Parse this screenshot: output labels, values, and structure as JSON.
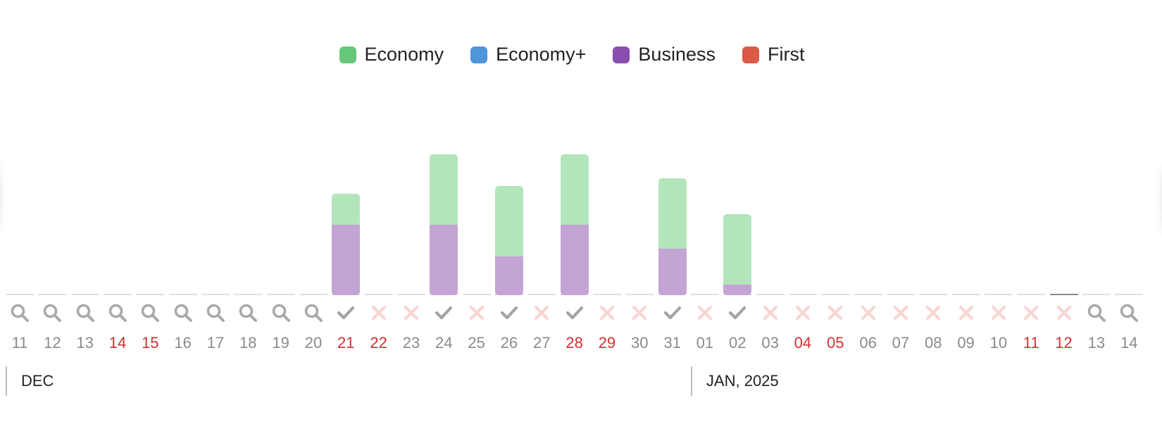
{
  "legend": [
    {
      "label": "Economy",
      "color": "#66c77a"
    },
    {
      "label": "Economy+",
      "color": "#4f95d9"
    },
    {
      "label": "Business",
      "color": "#8a4db0"
    },
    {
      "label": "First",
      "color": "#dc5a46"
    }
  ],
  "bar_colors": {
    "economy": "#b3e5bb",
    "business": "#c3a4d4"
  },
  "status_colors": {
    "search": "#a9a9a9",
    "available": "#a3a3a3",
    "unavailable": "#f8d6d3"
  },
  "max_seats": 20,
  "days": [
    {
      "label": "11",
      "weekend": false,
      "status": "search",
      "economy": 0,
      "business": 0
    },
    {
      "label": "12",
      "weekend": false,
      "status": "search",
      "economy": 0,
      "business": 0
    },
    {
      "label": "13",
      "weekend": false,
      "status": "search",
      "economy": 0,
      "business": 0
    },
    {
      "label": "14",
      "weekend": true,
      "status": "search",
      "economy": 0,
      "business": 0
    },
    {
      "label": "15",
      "weekend": true,
      "status": "search",
      "economy": 0,
      "business": 0
    },
    {
      "label": "16",
      "weekend": false,
      "status": "search",
      "economy": 0,
      "business": 0
    },
    {
      "label": "17",
      "weekend": false,
      "status": "search",
      "economy": 0,
      "business": 0
    },
    {
      "label": "18",
      "weekend": false,
      "status": "search",
      "economy": 0,
      "business": 0
    },
    {
      "label": "19",
      "weekend": false,
      "status": "search",
      "economy": 0,
      "business": 0
    },
    {
      "label": "20",
      "weekend": false,
      "status": "search",
      "economy": 0,
      "business": 0
    },
    {
      "label": "21",
      "weekend": true,
      "status": "available",
      "economy": 4.4,
      "business": 10
    },
    {
      "label": "22",
      "weekend": true,
      "status": "unavailable",
      "economy": 0,
      "business": 0
    },
    {
      "label": "23",
      "weekend": false,
      "status": "unavailable",
      "economy": 0,
      "business": 0
    },
    {
      "label": "24",
      "weekend": false,
      "status": "available",
      "economy": 10,
      "business": 10
    },
    {
      "label": "25",
      "weekend": false,
      "status": "unavailable",
      "economy": 0,
      "business": 0
    },
    {
      "label": "26",
      "weekend": false,
      "status": "available",
      "economy": 10,
      "business": 5.5
    },
    {
      "label": "27",
      "weekend": false,
      "status": "unavailable",
      "economy": 0,
      "business": 0
    },
    {
      "label": "28",
      "weekend": true,
      "status": "available",
      "economy": 10,
      "business": 10
    },
    {
      "label": "29",
      "weekend": true,
      "status": "unavailable",
      "economy": 0,
      "business": 0
    },
    {
      "label": "30",
      "weekend": false,
      "status": "unavailable",
      "economy": 0,
      "business": 0
    },
    {
      "label": "31",
      "weekend": false,
      "status": "available",
      "economy": 10,
      "business": 6.6
    },
    {
      "label": "01",
      "weekend": false,
      "status": "unavailable",
      "economy": 0,
      "business": 0
    },
    {
      "label": "02",
      "weekend": false,
      "status": "available",
      "economy": 10,
      "business": 1.5
    },
    {
      "label": "03",
      "weekend": false,
      "status": "unavailable",
      "economy": 0,
      "business": 0
    },
    {
      "label": "04",
      "weekend": true,
      "status": "unavailable",
      "economy": 0,
      "business": 0
    },
    {
      "label": "05",
      "weekend": true,
      "status": "unavailable",
      "economy": 0,
      "business": 0
    },
    {
      "label": "06",
      "weekend": false,
      "status": "unavailable",
      "economy": 0,
      "business": 0
    },
    {
      "label": "07",
      "weekend": false,
      "status": "unavailable",
      "economy": 0,
      "business": 0
    },
    {
      "label": "08",
      "weekend": false,
      "status": "unavailable",
      "economy": 0,
      "business": 0
    },
    {
      "label": "09",
      "weekend": false,
      "status": "unavailable",
      "economy": 0,
      "business": 0
    },
    {
      "label": "10",
      "weekend": false,
      "status": "unavailable",
      "economy": 0,
      "business": 0
    },
    {
      "label": "11",
      "weekend": true,
      "status": "unavailable",
      "economy": 0,
      "business": 0
    },
    {
      "label": "12",
      "weekend": true,
      "status": "unavailable",
      "economy": 0,
      "business": 0,
      "today": true
    },
    {
      "label": "13",
      "weekend": false,
      "status": "search",
      "economy": 0,
      "business": 0
    },
    {
      "label": "14",
      "weekend": false,
      "status": "search",
      "economy": 0,
      "business": 0
    }
  ],
  "months": [
    {
      "label": "DEC",
      "start_index": 0
    },
    {
      "label": "JAN, 2025",
      "start_index": 21
    }
  ]
}
